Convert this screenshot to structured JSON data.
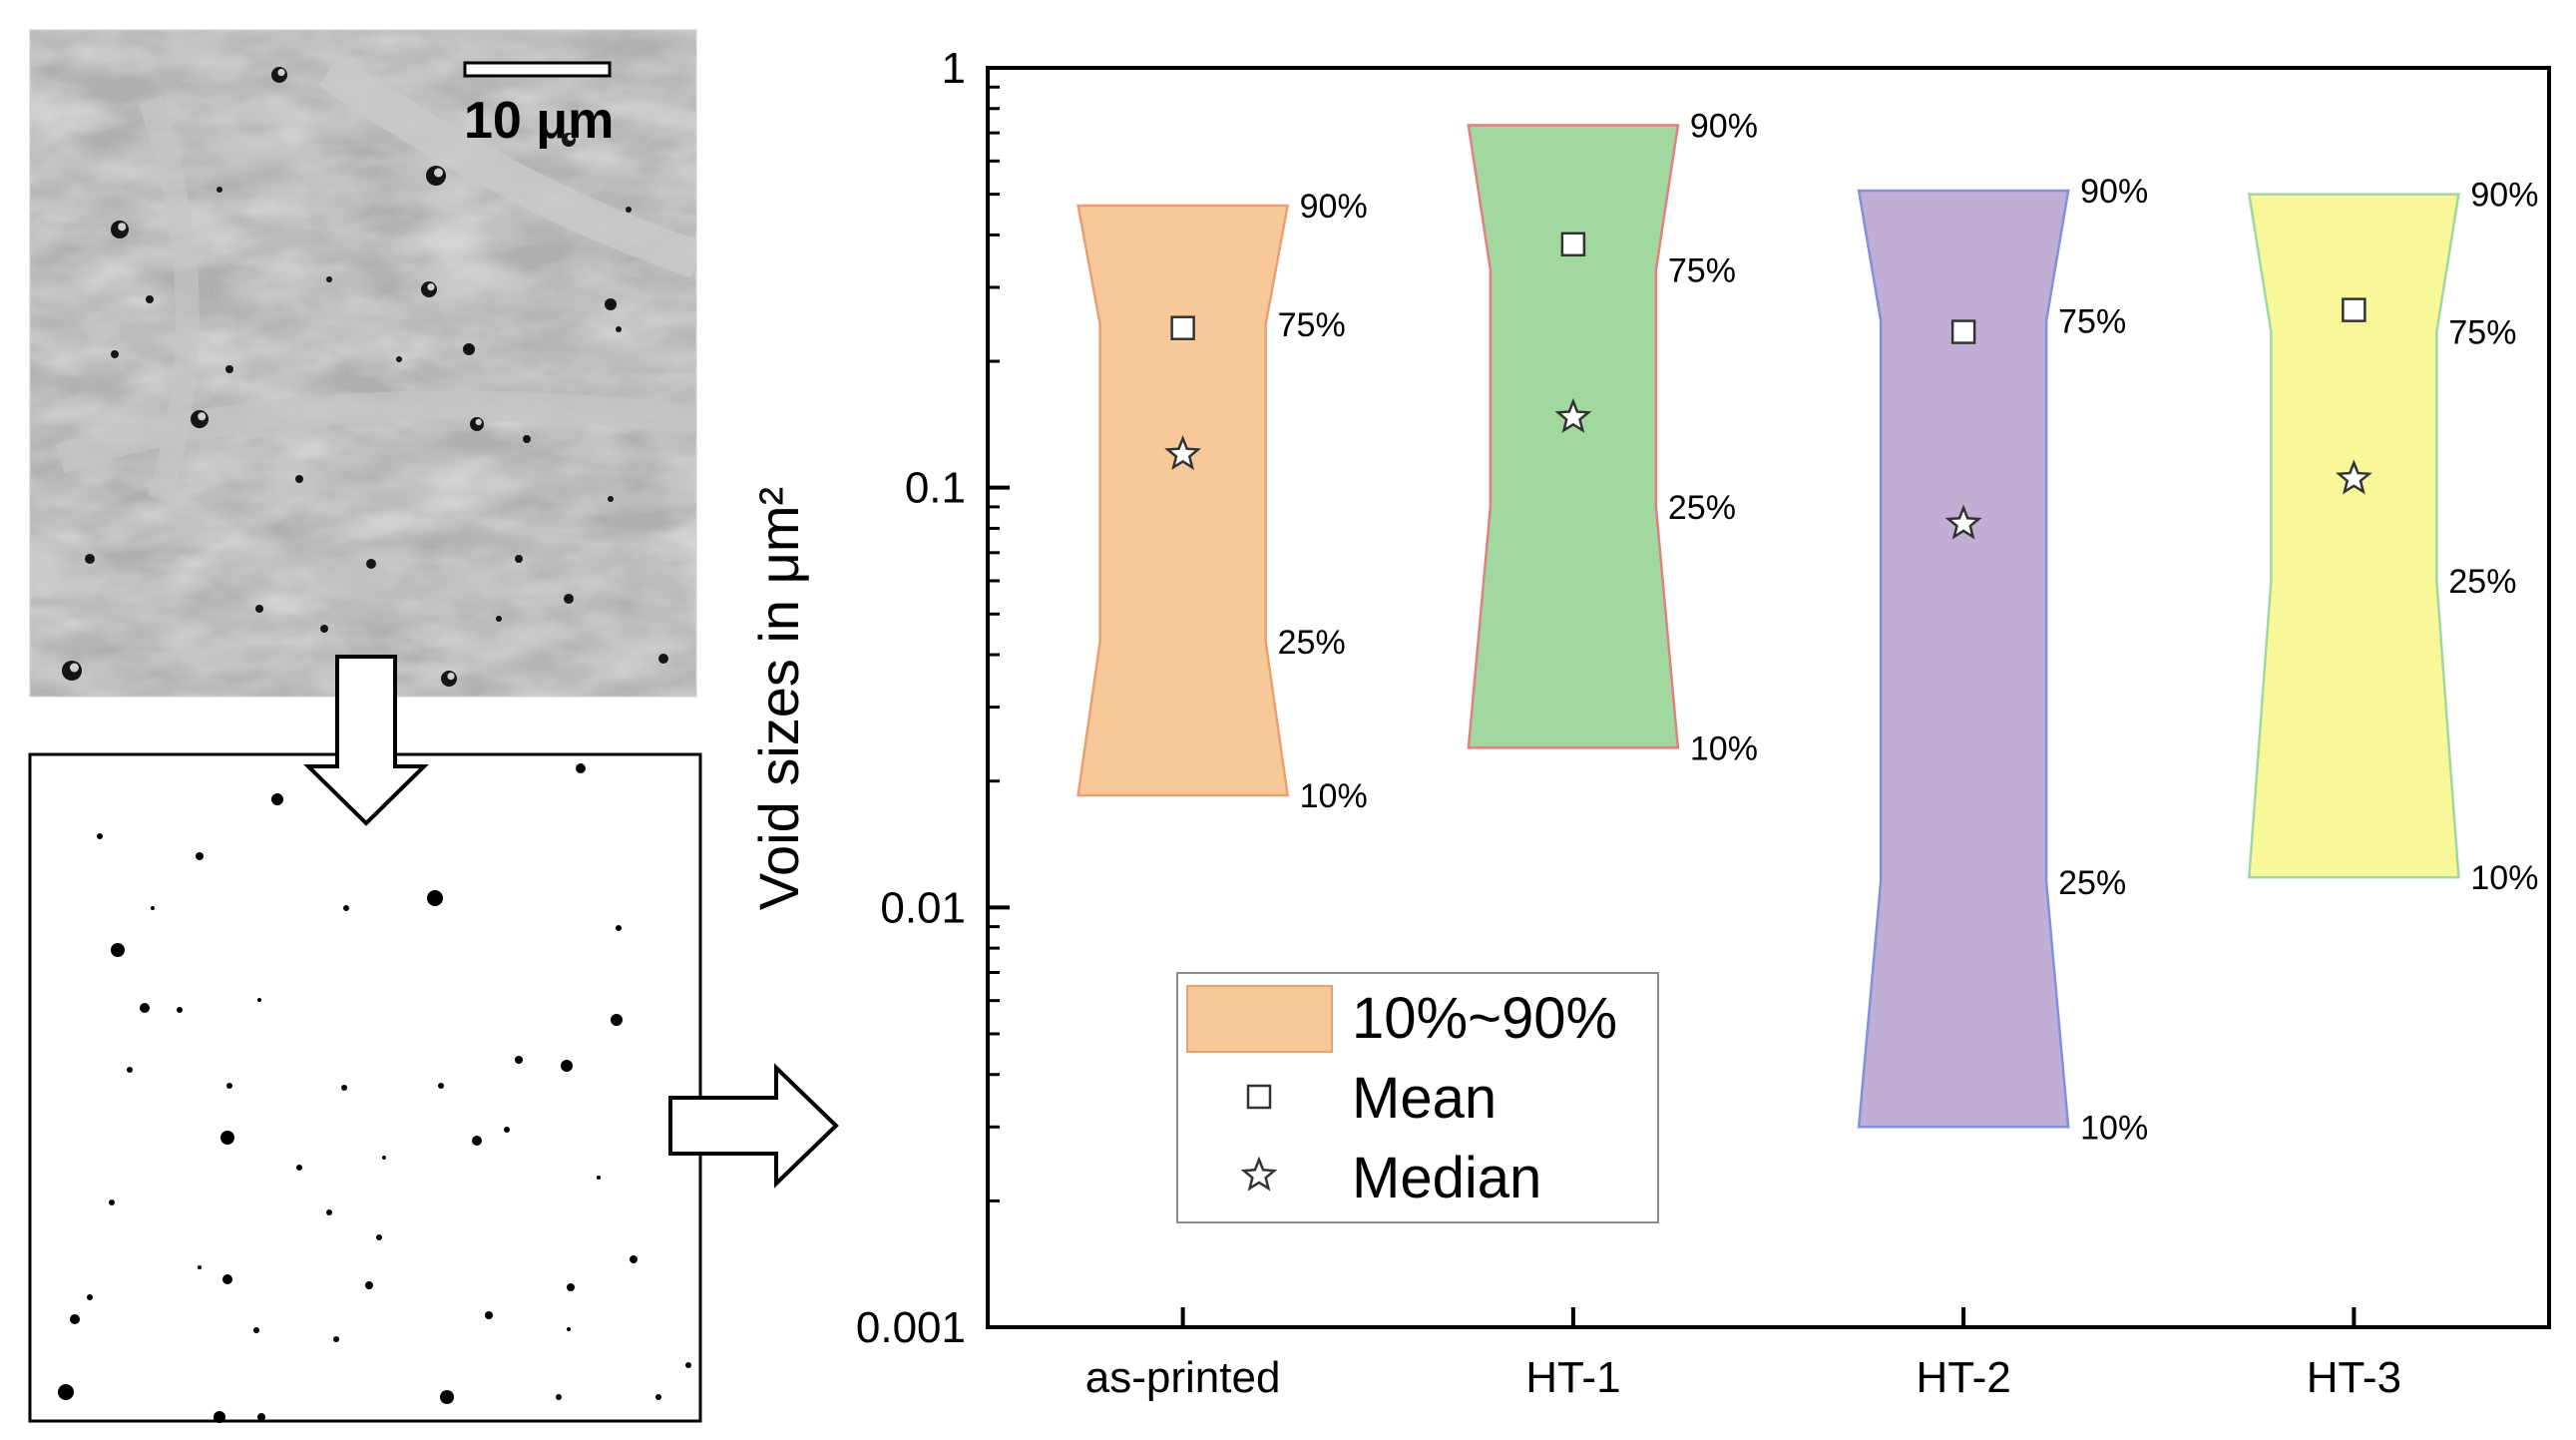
{
  "micrograph": {
    "scale_bar_label": "10 μm"
  },
  "chart_data": {
    "type": "box",
    "y_scale": "log",
    "ylabel": "Void sizes in μm²",
    "ylim": [
      0.001,
      1
    ],
    "y_ticks": [
      {
        "value": 0.001,
        "label": "0.001"
      },
      {
        "value": 0.01,
        "label": "0.01"
      },
      {
        "value": 0.1,
        "label": "0.1"
      },
      {
        "value": 1,
        "label": "1"
      }
    ],
    "categories": [
      "as-printed",
      "HT-1",
      "HT-2",
      "HT-3"
    ],
    "percentile_labels": {
      "p10": "10%",
      "p25": "25%",
      "p75": "75%",
      "p90": "90%"
    },
    "series": [
      {
        "category": "as-printed",
        "color": "#f9c898",
        "edge": "#e8a070",
        "p10": 0.0185,
        "p25": 0.043,
        "p75": 0.245,
        "p90": 0.47,
        "mean": 0.24,
        "median": 0.12
      },
      {
        "category": "HT-1",
        "color": "#a0d8a0",
        "edge": "#e08080",
        "p10": 0.024,
        "p25": 0.09,
        "p75": 0.33,
        "p90": 0.73,
        "mean": 0.38,
        "median": 0.147
      },
      {
        "category": "HT-2",
        "color": "#c0aed4",
        "edge": "#8090e0",
        "p10": 0.003,
        "p25": 0.0115,
        "p75": 0.25,
        "p90": 0.51,
        "mean": 0.235,
        "median": 0.082
      },
      {
        "category": "HT-3",
        "color": "#f8f89a",
        "edge": "#a0d8a0",
        "p10": 0.0118,
        "p25": 0.06,
        "p75": 0.235,
        "p90": 0.5,
        "mean": 0.265,
        "median": 0.105
      }
    ],
    "legend": {
      "placement": "bottom-left",
      "entries": [
        {
          "kind": "box",
          "label": "10%~90%"
        },
        {
          "kind": "mean",
          "label": "Mean"
        },
        {
          "kind": "median",
          "label": "Median"
        }
      ]
    }
  }
}
